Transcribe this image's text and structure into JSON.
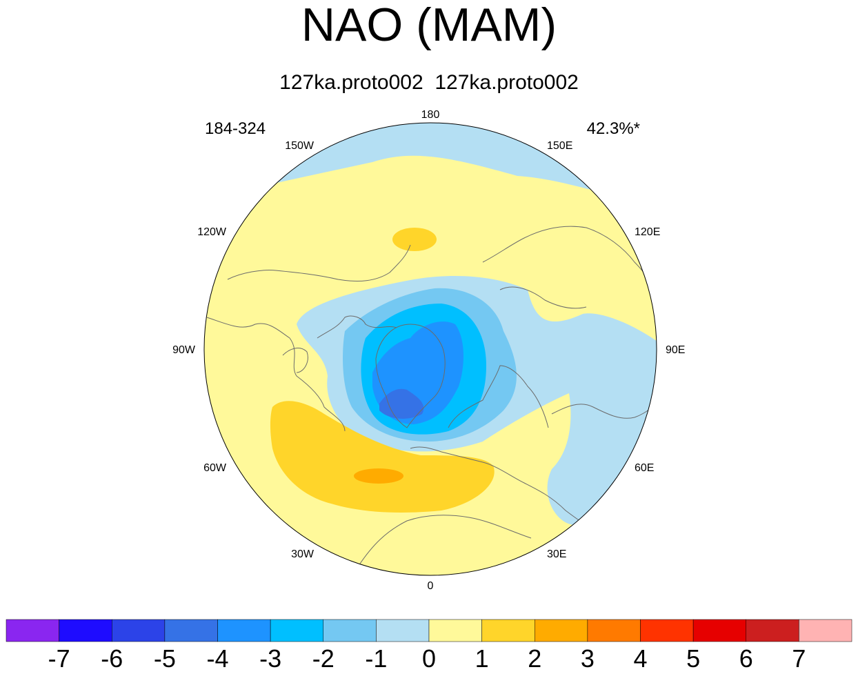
{
  "title": "NAO (MAM)",
  "subtitle": "127ka.proto002  127ka.proto002",
  "left_string": "184-324",
  "right_string": "42.3%*",
  "longitude_labels": {
    "top": "180",
    "bottom": "0",
    "left": "90W",
    "right": "90E",
    "w150": "150W",
    "e150": "150E",
    "w120": "120W",
    "e120": "120E",
    "w60": "60W",
    "e60": "60E",
    "w30": "30W",
    "e30": "30E"
  },
  "colorbar": {
    "colors": [
      "#8a26f0",
      "#1e0cff",
      "#2c43e8",
      "#3572e6",
      "#1e93ff",
      "#00bfff",
      "#74c8f2",
      "#b4dff3",
      "#fff99a",
      "#ffd52a",
      "#ffab00",
      "#ff7a00",
      "#ff3300",
      "#e60000",
      "#cc1f1f",
      "#ffb3b3"
    ],
    "labels": [
      "-7",
      "-6",
      "-5",
      "-4",
      "-3",
      "-2",
      "-1",
      "0",
      "1",
      "2",
      "3",
      "4",
      "5",
      "6",
      "7"
    ]
  },
  "colors": {
    "neg1": "#b4dff3",
    "neg2": "#74c8f2",
    "neg3": "#00bfff",
    "neg4": "#1e93ff",
    "neg5": "#3572e6",
    "pos1": "#fff99a",
    "pos2": "#ffd52a",
    "pos3": "#ffab00"
  }
}
